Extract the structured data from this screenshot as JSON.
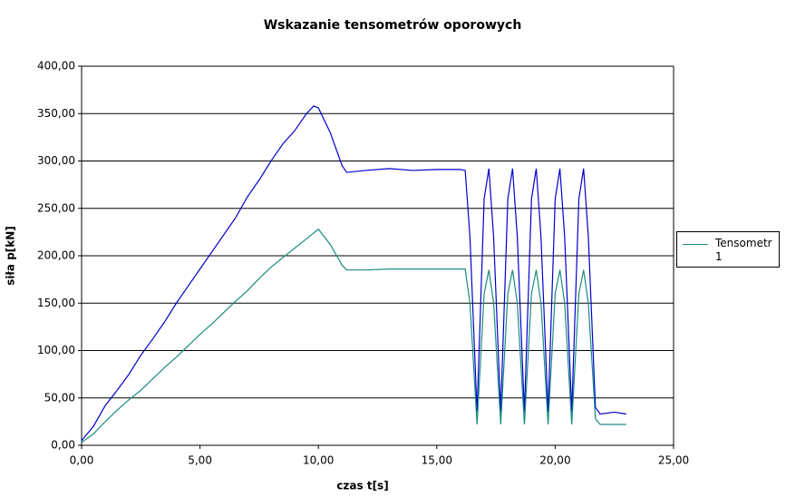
{
  "chart_data": {
    "type": "line",
    "title": "Wskazanie tensometrów oporowych",
    "x_label": "czas t[s]",
    "y_label": "siła p[kN]",
    "x": [
      0,
      0.5,
      1,
      1.5,
      2,
      2.5,
      3,
      3.5,
      4,
      4.5,
      5,
      5.5,
      6,
      6.5,
      7,
      7.5,
      8,
      8.5,
      9,
      9.5,
      9.8,
      10,
      10.5,
      11,
      11.2,
      12,
      13,
      14,
      15,
      16,
      16.2,
      16.4,
      16.7,
      17,
      17.2,
      17.4,
      17.7,
      18,
      18.2,
      18.4,
      18.7,
      19,
      19.2,
      19.4,
      19.7,
      20,
      20.2,
      20.4,
      20.7,
      21,
      21.2,
      21.4,
      21.7,
      21.9,
      22.5,
      23
    ],
    "series": [
      {
        "color": "#0000cc",
        "values": [
          5,
          20,
          42,
          58,
          75,
          95,
          112,
          130,
          150,
          168,
          186,
          204,
          222,
          240,
          262,
          280,
          300,
          318,
          332,
          350,
          358,
          356,
          330,
          295,
          288,
          290,
          292,
          290,
          291,
          291,
          290,
          220,
          35,
          260,
          292,
          220,
          35,
          260,
          292,
          220,
          35,
          260,
          292,
          220,
          35,
          260,
          292,
          220,
          35,
          260,
          292,
          220,
          40,
          33,
          35,
          33
        ]
      },
      {
        "name": "Tensometr 1",
        "color": "#1a8a80",
        "values": [
          3,
          12,
          25,
          37,
          48,
          58,
          70,
          82,
          93,
          105,
          117,
          128,
          140,
          152,
          163,
          176,
          188,
          198,
          208,
          218,
          224,
          228,
          212,
          190,
          185,
          185,
          186,
          186,
          186,
          186,
          186,
          150,
          22,
          160,
          185,
          150,
          22,
          160,
          185,
          150,
          22,
          160,
          185,
          150,
          22,
          160,
          185,
          150,
          22,
          160,
          185,
          150,
          28,
          22,
          22,
          22
        ]
      }
    ],
    "xlim": [
      0,
      25
    ],
    "xticks": [
      {
        "value": 0,
        "label": "0,00"
      },
      {
        "value": 5,
        "label": "5,00"
      },
      {
        "value": 10,
        "label": "10,00"
      },
      {
        "value": 15,
        "label": "15,00"
      },
      {
        "value": 20,
        "label": "20,00"
      },
      {
        "value": 25,
        "label": "25,00"
      }
    ],
    "ylim": [
      0,
      400
    ],
    "yticks": [
      {
        "value": 0,
        "label": "0,00"
      },
      {
        "value": 50,
        "label": "50,00"
      },
      {
        "value": 100,
        "label": "100,00"
      },
      {
        "value": 150,
        "label": "150,00"
      },
      {
        "value": 200,
        "label": "200,00"
      },
      {
        "value": 250,
        "label": "250,00"
      },
      {
        "value": 300,
        "label": "300,00"
      },
      {
        "value": 350,
        "label": "350,00"
      },
      {
        "value": 400,
        "label": "400,00"
      }
    ],
    "grid": true
  }
}
